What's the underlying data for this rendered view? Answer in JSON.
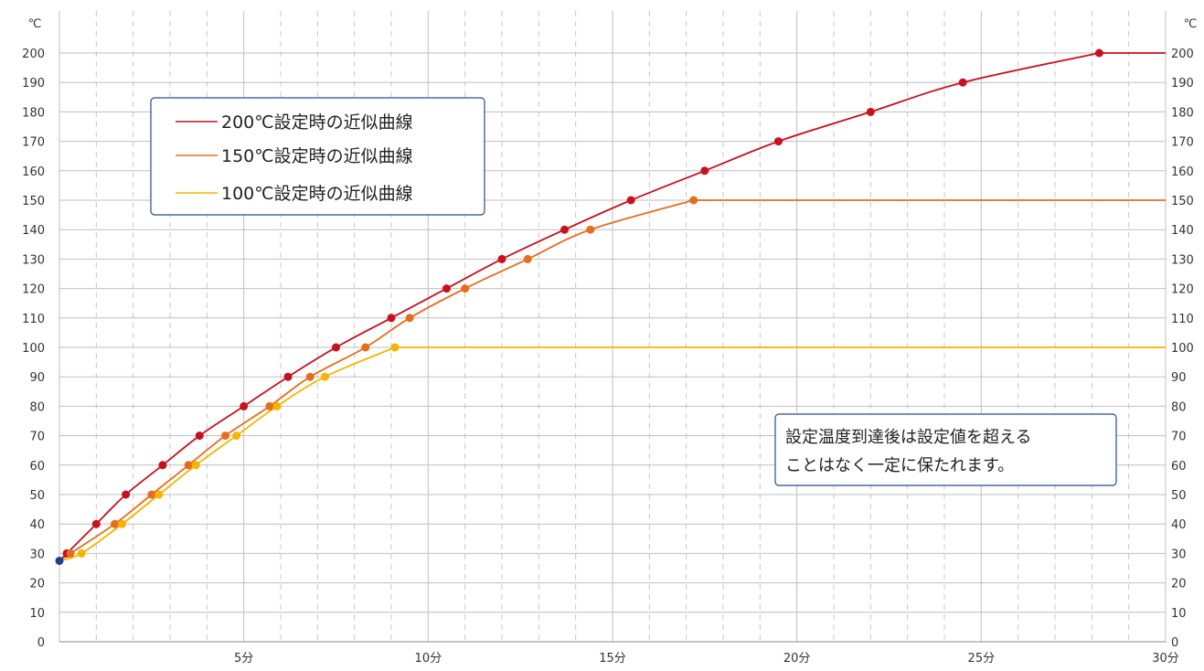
{
  "chart_data": {
    "type": "line",
    "x_unit_label": "分",
    "y_unit_label": "℃",
    "xlim": [
      0,
      30
    ],
    "ylim": [
      0,
      200
    ],
    "x_ticks": [
      {
        "value": 5,
        "label": "5分"
      },
      {
        "value": 10,
        "label": "10分"
      },
      {
        "value": 15,
        "label": "15分"
      },
      {
        "value": 20,
        "label": "20分"
      },
      {
        "value": 25,
        "label": "25分"
      },
      {
        "value": 30,
        "label": "30分"
      }
    ],
    "y_ticks": [
      {
        "value": 0,
        "label": "0"
      },
      {
        "value": 10,
        "label": "10"
      },
      {
        "value": 20,
        "label": "20"
      },
      {
        "value": 30,
        "label": "30"
      },
      {
        "value": 40,
        "label": "40"
      },
      {
        "value": 50,
        "label": "50"
      },
      {
        "value": 60,
        "label": "60"
      },
      {
        "value": 70,
        "label": "70"
      },
      {
        "value": 80,
        "label": "80"
      },
      {
        "value": 90,
        "label": "90"
      },
      {
        "value": 100,
        "label": "100"
      },
      {
        "value": 110,
        "label": "110"
      },
      {
        "value": 120,
        "label": "120"
      },
      {
        "value": 130,
        "label": "130"
      },
      {
        "value": 140,
        "label": "140"
      },
      {
        "value": 150,
        "label": "150"
      },
      {
        "value": 160,
        "label": "160"
      },
      {
        "value": 170,
        "label": "170"
      },
      {
        "value": 180,
        "label": "180"
      },
      {
        "value": 190,
        "label": "190"
      },
      {
        "value": 200,
        "label": "200"
      }
    ],
    "grid": {
      "major_x_step": 5,
      "minor_x_step": 1,
      "y_step": 10
    },
    "start_point": {
      "x": 0,
      "y": 27.5,
      "color": "#1f3f8f"
    },
    "series": [
      {
        "name": "200℃設定時の近似曲線",
        "color": "#c8101e",
        "points": [
          {
            "x": 0.2,
            "y": 30
          },
          {
            "x": 1.0,
            "y": 40
          },
          {
            "x": 1.8,
            "y": 50
          },
          {
            "x": 2.8,
            "y": 60
          },
          {
            "x": 3.8,
            "y": 70
          },
          {
            "x": 5.0,
            "y": 80
          },
          {
            "x": 6.2,
            "y": 90
          },
          {
            "x": 7.5,
            "y": 100
          },
          {
            "x": 9.0,
            "y": 110
          },
          {
            "x": 10.5,
            "y": 120
          },
          {
            "x": 12.0,
            "y": 130
          },
          {
            "x": 13.7,
            "y": 140
          },
          {
            "x": 15.5,
            "y": 150
          },
          {
            "x": 17.5,
            "y": 160
          },
          {
            "x": 19.5,
            "y": 170
          },
          {
            "x": 22.0,
            "y": 180
          },
          {
            "x": 24.5,
            "y": 190
          },
          {
            "x": 28.2,
            "y": 200
          }
        ],
        "plateau_y": 200
      },
      {
        "name": "150℃設定時の近似曲線",
        "color": "#e46e1c",
        "points": [
          {
            "x": 0.3,
            "y": 30
          },
          {
            "x": 1.5,
            "y": 40
          },
          {
            "x": 2.5,
            "y": 50
          },
          {
            "x": 3.5,
            "y": 60
          },
          {
            "x": 4.5,
            "y": 70
          },
          {
            "x": 5.7,
            "y": 80
          },
          {
            "x": 6.8,
            "y": 90
          },
          {
            "x": 8.3,
            "y": 100
          },
          {
            "x": 9.5,
            "y": 110
          },
          {
            "x": 11.0,
            "y": 120
          },
          {
            "x": 12.7,
            "y": 130
          },
          {
            "x": 14.4,
            "y": 140
          },
          {
            "x": 17.2,
            "y": 150
          }
        ],
        "plateau_y": 150
      },
      {
        "name": "100℃設定時の近似曲線",
        "color": "#f5b400",
        "points": [
          {
            "x": 0.6,
            "y": 30
          },
          {
            "x": 1.7,
            "y": 40
          },
          {
            "x": 2.7,
            "y": 50
          },
          {
            "x": 3.7,
            "y": 60
          },
          {
            "x": 4.8,
            "y": 70
          },
          {
            "x": 5.9,
            "y": 80
          },
          {
            "x": 7.2,
            "y": 90
          },
          {
            "x": 9.1,
            "y": 100
          }
        ],
        "plateau_y": 100
      }
    ],
    "annotation": {
      "lines": [
        "設定温度到達後は設定値を超える",
        "ことはなく一定に保たれます。"
      ]
    },
    "legend_placement": "top-left"
  },
  "colors": {
    "grid_major": "#bfbfbf",
    "grid_minor": "#c8c8c8",
    "box_border": "#2a4a8a",
    "axis": "#888888"
  }
}
